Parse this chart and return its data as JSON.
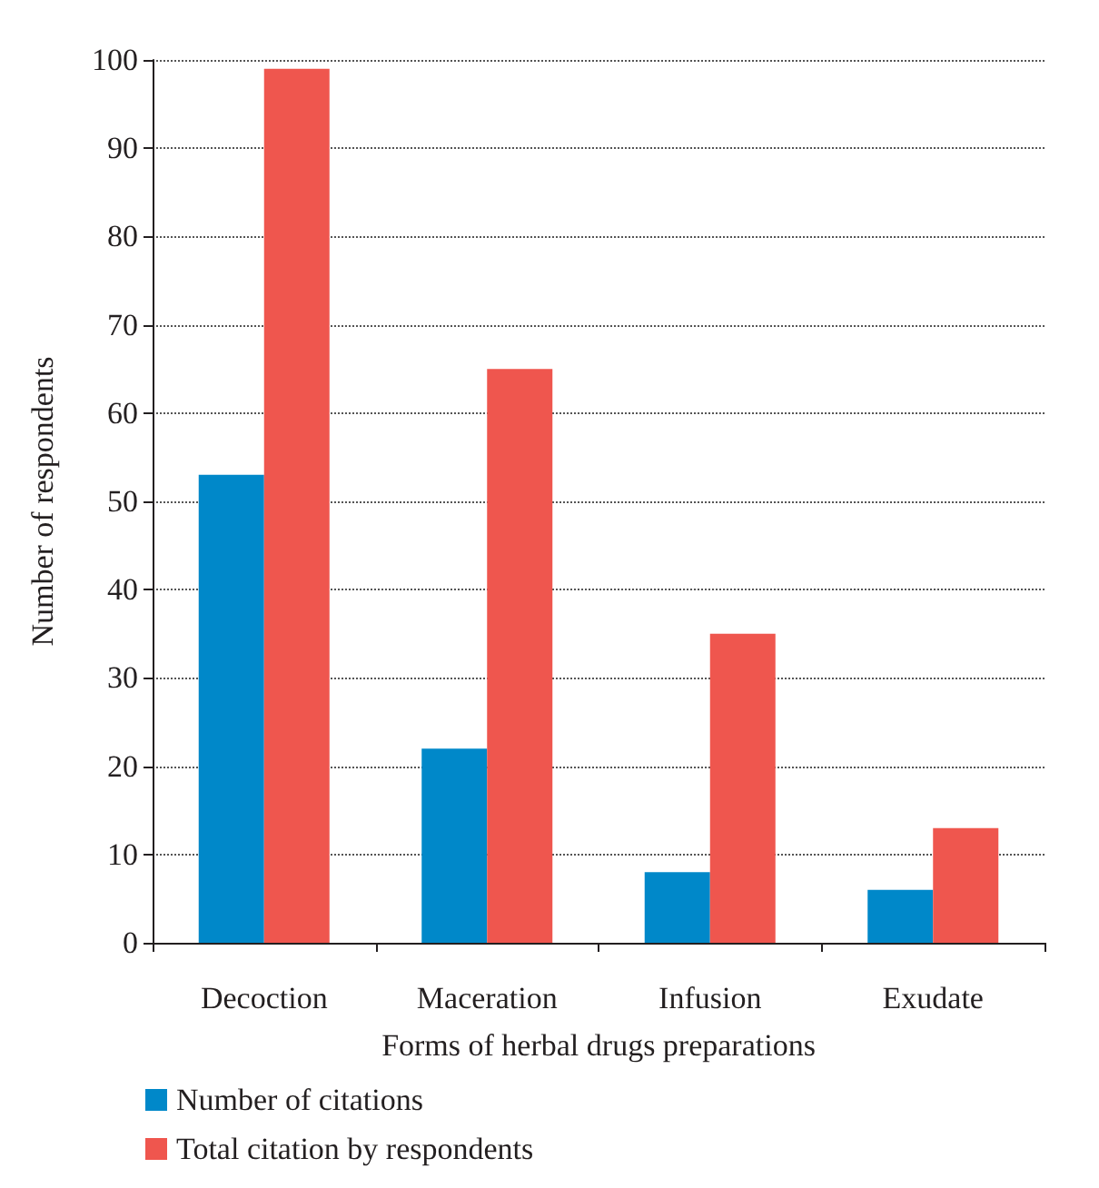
{
  "chart_data": {
    "type": "bar",
    "xlabel": "Forms of herbal drugs preparations",
    "ylabel": "Number of respondents",
    "categories": [
      "Decoction",
      "Maceration",
      "Infusion",
      "Exudate"
    ],
    "series": [
      {
        "name": "Number of citations",
        "color": "#0088c9",
        "values": [
          53,
          22,
          8,
          6
        ]
      },
      {
        "name": "Total citation by respondents",
        "color": "#ef564e",
        "values": [
          99,
          65,
          35,
          13
        ]
      }
    ],
    "ylim": [
      0,
      100
    ],
    "yticks": [
      0,
      10,
      20,
      30,
      40,
      50,
      60,
      70,
      80,
      90,
      100
    ],
    "grid": "y",
    "legend": "bottom left"
  }
}
